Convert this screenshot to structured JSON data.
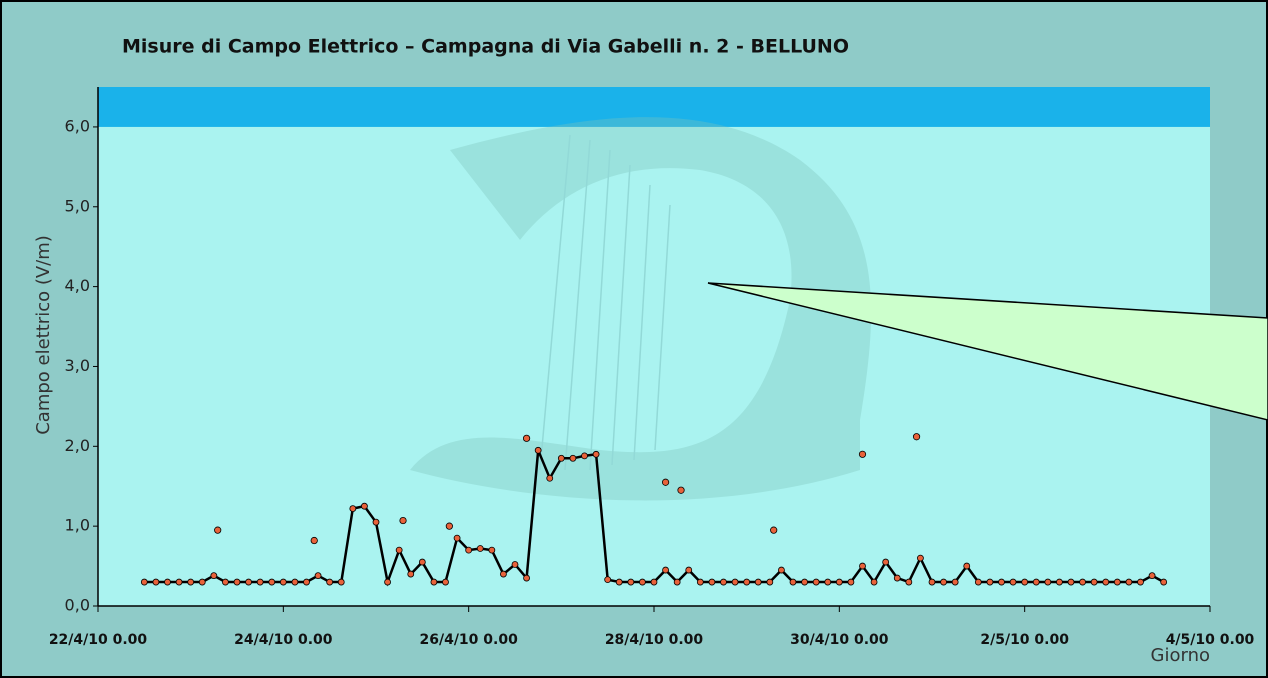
{
  "chart_data": {
    "type": "line",
    "title": "Misure di Campo Elettrico – Campagna di Via Gabelli n. 2 - BELLUNO",
    "y_label": "Campo elettrico (V/m)",
    "x_label": "Giorno",
    "xlim": [
      "2010-04-22T00:00",
      "2010-05-04T00:00"
    ],
    "xticks": [
      {
        "value": "2010-04-22T00:00",
        "label": "22/4/10 0.00"
      },
      {
        "value": "2010-04-24T00:00",
        "label": "24/4/10 0.00"
      },
      {
        "value": "2010-04-26T00:00",
        "label": "26/4/10 0.00"
      },
      {
        "value": "2010-04-28T00:00",
        "label": "28/4/10 0.00"
      },
      {
        "value": "2010-04-30T00:00",
        "label": "30/4/10 0.00"
      },
      {
        "value": "2010-05-02T00:00",
        "label": "2/5/10 0.00"
      },
      {
        "value": "2010-05-04T00:00",
        "label": "4/5/10 0.00"
      }
    ],
    "ylim": [
      0,
      6.5
    ],
    "yticks": [
      {
        "value": 0,
        "label": "0,0"
      },
      {
        "value": 1,
        "label": "1,0"
      },
      {
        "value": 2,
        "label": "2,0"
      },
      {
        "value": 3,
        "label": "3,0"
      },
      {
        "value": 4,
        "label": "4,0"
      },
      {
        "value": 5,
        "label": "5,0"
      },
      {
        "value": 6,
        "label": "6,0"
      }
    ],
    "limit_band": {
      "from": 6,
      "to": 6.5,
      "color": "#1ab2ea"
    },
    "x": [
      "2010-04-22T12:00",
      "2010-04-22T15:00",
      "2010-04-22T18:00",
      "2010-04-22T21:00",
      "2010-04-23T00:00",
      "2010-04-23T03:00",
      "2010-04-23T06:00",
      "2010-04-23T09:00",
      "2010-04-23T12:00",
      "2010-04-23T15:00",
      "2010-04-23T18:00",
      "2010-04-23T21:00",
      "2010-04-24T00:00",
      "2010-04-24T03:00",
      "2010-04-24T06:00",
      "2010-04-24T09:00",
      "2010-04-24T12:00",
      "2010-04-24T15:00",
      "2010-04-24T18:00",
      "2010-04-24T21:00",
      "2010-04-25T00:00",
      "2010-04-25T03:00",
      "2010-04-25T06:00",
      "2010-04-25T09:00",
      "2010-04-25T12:00",
      "2010-04-25T15:00",
      "2010-04-25T18:00",
      "2010-04-25T21:00",
      "2010-04-26T00:00",
      "2010-04-26T03:00",
      "2010-04-26T06:00",
      "2010-04-26T09:00",
      "2010-04-26T12:00",
      "2010-04-26T15:00",
      "2010-04-26T18:00",
      "2010-04-26T21:00",
      "2010-04-27T00:00",
      "2010-04-27T03:00",
      "2010-04-27T06:00",
      "2010-04-27T09:00",
      "2010-04-27T12:00",
      "2010-04-27T15:00",
      "2010-04-27T18:00",
      "2010-04-27T21:00",
      "2010-04-28T00:00",
      "2010-04-28T03:00",
      "2010-04-28T06:00",
      "2010-04-28T09:00",
      "2010-04-28T12:00",
      "2010-04-28T15:00",
      "2010-04-28T18:00",
      "2010-04-28T21:00",
      "2010-04-29T00:00",
      "2010-04-29T03:00",
      "2010-04-29T06:00",
      "2010-04-29T09:00",
      "2010-04-29T12:00",
      "2010-04-29T15:00",
      "2010-04-29T18:00",
      "2010-04-29T21:00",
      "2010-04-30T00:00",
      "2010-04-30T03:00",
      "2010-04-30T06:00",
      "2010-04-30T09:00",
      "2010-04-30T12:00",
      "2010-04-30T15:00",
      "2010-04-30T18:00",
      "2010-04-30T21:00",
      "2010-05-01T00:00",
      "2010-05-01T03:00",
      "2010-05-01T06:00",
      "2010-05-01T09:00",
      "2010-05-01T12:00",
      "2010-05-01T15:00",
      "2010-05-01T18:00",
      "2010-05-01T21:00",
      "2010-05-02T00:00",
      "2010-05-02T03:00",
      "2010-05-02T06:00",
      "2010-05-02T09:00",
      "2010-05-02T12:00",
      "2010-05-02T15:00",
      "2010-05-02T18:00",
      "2010-05-02T21:00",
      "2010-05-03T00:00",
      "2010-05-03T03:00",
      "2010-05-03T06:00",
      "2010-05-03T09:00",
      "2010-05-03T12:00"
    ],
    "series": [
      {
        "color": "#000000",
        "marker_color": "#e8623a",
        "values": [
          0.3,
          0.3,
          0.3,
          0.3,
          0.3,
          0.3,
          0.38,
          0.3,
          0.3,
          0.3,
          0.3,
          0.3,
          0.3,
          0.3,
          0.3,
          0.38,
          0.3,
          0.3,
          1.22,
          1.25,
          1.05,
          0.3,
          0.7,
          0.4,
          0.55,
          0.3,
          0.3,
          0.85,
          0.7,
          0.72,
          0.7,
          0.4,
          0.52,
          0.35,
          1.95,
          1.6,
          1.85,
          1.85,
          1.88,
          1.9,
          0.33,
          0.3,
          0.3,
          0.3,
          0.3,
          0.45,
          0.3,
          0.45,
          0.3,
          0.3,
          0.3,
          0.3,
          0.3,
          0.3,
          0.3,
          0.45,
          0.3,
          0.3,
          0.3,
          0.3,
          0.3,
          0.3,
          0.5,
          0.3,
          0.55,
          0.35,
          0.3,
          0.6,
          0.3,
          0.3,
          0.3,
          0.5,
          0.3,
          0.3,
          0.3,
          0.3,
          0.3,
          0.3,
          0.3,
          0.3,
          0.3,
          0.3,
          0.3,
          0.3,
          0.3,
          0.3,
          0.3,
          0.38,
          0.3
        ]
      },
      {
        "color": "#e8623a",
        "x": [
          "2010-04-23T07:00",
          "2010-04-24T08:00",
          "2010-04-25T07:00",
          "2010-04-25T19:00",
          "2010-04-26T15:00",
          "2010-04-28T03:00",
          "2010-04-28T07:00",
          "2010-04-29T07:00",
          "2010-04-30T06:00",
          "2010-04-30T20:00"
        ],
        "values": [
          0.95,
          0.82,
          1.07,
          1.0,
          2.1,
          1.55,
          1.45,
          0.95,
          1.9,
          2.12
        ]
      }
    ]
  }
}
